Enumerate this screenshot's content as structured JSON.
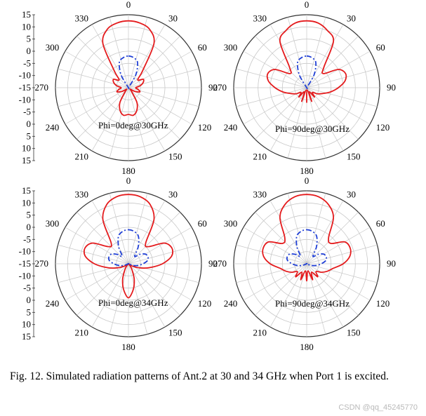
{
  "caption": "Fig. 12.   Simulated radiation patterns of Ant.2 at 30 and 34 GHz when Port 1 is excited.",
  "watermark": "CSDN @qq_45245770",
  "colors": {
    "copol": "#e41a1c",
    "xpol": "#1f3fd6",
    "grid": "#c8c8c8",
    "axis": "#333333"
  },
  "chart_data": [
    {
      "type": "polar-line",
      "annotation": "Phi=0deg@30GHz",
      "r_ticks": [
        "15",
        "10",
        "5",
        "0",
        "-5",
        "-10",
        "-15",
        "-10",
        "-5",
        "0",
        "5",
        "10",
        "15"
      ],
      "r_range": [
        -15,
        15
      ],
      "angle_ticks": [
        "0",
        "30",
        "60",
        "90",
        "120",
        "150",
        "180",
        "210",
        "240",
        "270",
        "300",
        "330"
      ],
      "series": [
        {
          "style": "solid",
          "color": "#e41a1c",
          "theta": [
            0,
            10,
            20,
            30,
            40,
            50,
            60,
            70,
            80,
            90,
            100,
            110,
            120,
            130,
            140,
            150,
            160,
            170,
            180,
            190,
            200,
            210,
            220,
            230,
            240,
            250,
            260,
            270,
            280,
            290,
            300,
            310,
            320,
            330,
            340,
            350
          ],
          "values": [
            12.5,
            12,
            10.5,
            6,
            -6,
            -10,
            -8,
            -8.5,
            -10,
            -12,
            -11,
            -10,
            -12,
            -14,
            -13,
            -8,
            -5,
            -3.5,
            -4,
            -3.5,
            -5,
            -8,
            -13,
            -14,
            -12,
            -10,
            -11,
            -12,
            -10,
            -8.5,
            -8,
            -10,
            -6,
            6,
            10.5,
            12
          ]
        },
        {
          "style": "dash-dot",
          "color": "#1f3fd6",
          "theta": [
            0,
            10,
            20,
            30,
            40,
            50,
            60,
            70,
            80,
            90,
            100,
            110,
            120,
            130,
            140,
            150,
            160,
            170,
            180,
            190,
            200,
            210,
            220,
            230,
            240,
            250,
            260,
            270,
            280,
            290,
            300,
            310,
            320,
            330,
            340,
            350
          ],
          "values": [
            -2,
            -2.5,
            -4,
            -9,
            -15,
            -15,
            -15,
            -15,
            -15,
            -15,
            -15,
            -15,
            -15,
            -15,
            -15,
            -15,
            -15,
            -15,
            -15,
            -15,
            -15,
            -15,
            -15,
            -15,
            -15,
            -15,
            -15,
            -15,
            -15,
            -15,
            -15,
            -15,
            -15,
            -9,
            -4,
            -2.5
          ]
        }
      ]
    },
    {
      "type": "polar-line",
      "annotation": "Phi=90deg@30GHz",
      "r_ticks": [],
      "r_range": [
        -15,
        15
      ],
      "angle_ticks": [
        "0",
        "30",
        "60",
        "90",
        "120",
        "150",
        "180",
        "210",
        "240",
        "270",
        "300",
        "330"
      ],
      "series": [
        {
          "style": "solid",
          "color": "#e41a1c",
          "theta": [
            0,
            10,
            20,
            30,
            40,
            50,
            60,
            70,
            80,
            90,
            100,
            110,
            120,
            130,
            140,
            150,
            160,
            170,
            180,
            190,
            200,
            210,
            220,
            230,
            240,
            250,
            260,
            270,
            280,
            290,
            300,
            310,
            320,
            330,
            340,
            350
          ],
          "values": [
            12.5,
            12,
            10,
            7,
            -4,
            -6,
            0,
            2,
            1,
            -2,
            -5,
            -8,
            -10,
            -12,
            -10,
            -13,
            -9,
            -14,
            -9,
            -14,
            -9,
            -13,
            -10,
            -12,
            -10,
            -8,
            -5,
            -2,
            1,
            2,
            0,
            -6,
            -4,
            7,
            10,
            12
          ]
        },
        {
          "style": "dash-dot",
          "color": "#1f3fd6",
          "theta": [
            0,
            10,
            20,
            30,
            40,
            50,
            60,
            70,
            80,
            90,
            100,
            110,
            120,
            130,
            140,
            150,
            160,
            170,
            180,
            190,
            200,
            210,
            220,
            230,
            240,
            250,
            260,
            270,
            280,
            290,
            300,
            310,
            320,
            330,
            340,
            350
          ],
          "values": [
            -2,
            -2.5,
            -4,
            -9,
            -15,
            -15,
            -15,
            -15,
            -15,
            -15,
            -15,
            -15,
            -15,
            -15,
            -15,
            -15,
            -15,
            -15,
            -15,
            -15,
            -15,
            -15,
            -15,
            -15,
            -15,
            -15,
            -15,
            -15,
            -15,
            -15,
            -15,
            -15,
            -15,
            -9,
            -4,
            -2.5
          ]
        }
      ]
    },
    {
      "type": "polar-line",
      "annotation": "Phi=0deg@34GHz",
      "r_ticks": [
        "15",
        "10",
        "5",
        "0",
        "-5",
        "-10",
        "-15",
        "-10",
        "-5",
        "0",
        "5",
        "10",
        "15"
      ],
      "r_range": [
        -15,
        15
      ],
      "angle_ticks": [
        "0",
        "30",
        "60",
        "90",
        "120",
        "150",
        "180",
        "210",
        "240",
        "270",
        "300",
        "330"
      ],
      "series": [
        {
          "style": "solid",
          "color": "#e41a1c",
          "theta": [
            0,
            10,
            20,
            30,
            40,
            50,
            60,
            70,
            80,
            90,
            100,
            110,
            120,
            130,
            140,
            150,
            160,
            170,
            180,
            190,
            200,
            210,
            220,
            230,
            240,
            250,
            260,
            270,
            280,
            290,
            300,
            310,
            320,
            330,
            340,
            350
          ],
          "values": [
            13.5,
            13,
            11,
            6,
            -4,
            -4,
            2,
            4,
            3,
            -1,
            -6,
            -10,
            -13,
            -15,
            -14,
            -12,
            -8,
            -4,
            -1,
            -4,
            -8,
            -12,
            -14,
            -15,
            -13,
            -10,
            -6,
            -1,
            3,
            4,
            2,
            -4,
            -4,
            6,
            11,
            13
          ]
        },
        {
          "style": "dash-dot",
          "color": "#1f3fd6",
          "theta": [
            0,
            10,
            20,
            30,
            40,
            50,
            60,
            70,
            80,
            90,
            100,
            110,
            120,
            130,
            140,
            150,
            160,
            170,
            180,
            190,
            200,
            210,
            220,
            230,
            240,
            250,
            260,
            270,
            280,
            290,
            300,
            310,
            320,
            330,
            340,
            350
          ],
          "values": [
            -1,
            -1.5,
            -3,
            -7,
            -11,
            -9,
            -7,
            -6.5,
            -7,
            -9,
            -11,
            -13,
            -15,
            -15,
            -15,
            -15,
            -15,
            -15,
            -15,
            -15,
            -15,
            -15,
            -15,
            -15,
            -15,
            -13,
            -11,
            -9,
            -7,
            -6.5,
            -7,
            -9,
            -11,
            -7,
            -3,
            -1.5
          ]
        }
      ]
    },
    {
      "type": "polar-line",
      "annotation": "Phi=90deg@34GHz",
      "r_ticks": [],
      "r_range": [
        -15,
        15
      ],
      "angle_ticks": [
        "0",
        "30",
        "60",
        "90",
        "120",
        "150",
        "180",
        "210",
        "240",
        "270",
        "300",
        "330"
      ],
      "series": [
        {
          "style": "solid",
          "color": "#e41a1c",
          "theta": [
            0,
            10,
            20,
            30,
            40,
            50,
            60,
            70,
            80,
            90,
            100,
            110,
            120,
            130,
            140,
            150,
            160,
            170,
            180,
            190,
            200,
            210,
            220,
            230,
            240,
            250,
            260,
            270,
            280,
            290,
            300,
            310,
            320,
            330,
            340,
            350
          ],
          "values": [
            13.5,
            13,
            11,
            7,
            -1,
            -2,
            3,
            4,
            3,
            0,
            -4,
            -6,
            -8,
            -10,
            -8,
            -11,
            -8,
            -12,
            -8,
            -12,
            -8,
            -11,
            -8,
            -10,
            -8,
            -6,
            -4,
            0,
            3,
            4,
            3,
            -2,
            -1,
            7,
            11,
            13
          ]
        },
        {
          "style": "dash-dot",
          "color": "#1f3fd6",
          "theta": [
            0,
            10,
            20,
            30,
            40,
            50,
            60,
            70,
            80,
            90,
            100,
            110,
            120,
            130,
            140,
            150,
            160,
            170,
            180,
            190,
            200,
            210,
            220,
            230,
            240,
            250,
            260,
            270,
            280,
            290,
            300,
            310,
            320,
            330,
            340,
            350
          ],
          "values": [
            -1,
            -1.5,
            -3,
            -7,
            -11,
            -9,
            -7,
            -6.5,
            -7,
            -9,
            -11,
            -13,
            -15,
            -15,
            -15,
            -15,
            -15,
            -15,
            -15,
            -15,
            -15,
            -15,
            -15,
            -15,
            -15,
            -13,
            -11,
            -9,
            -7,
            -6.5,
            -7,
            -9,
            -11,
            -7,
            -3,
            -1.5
          ]
        }
      ]
    }
  ]
}
